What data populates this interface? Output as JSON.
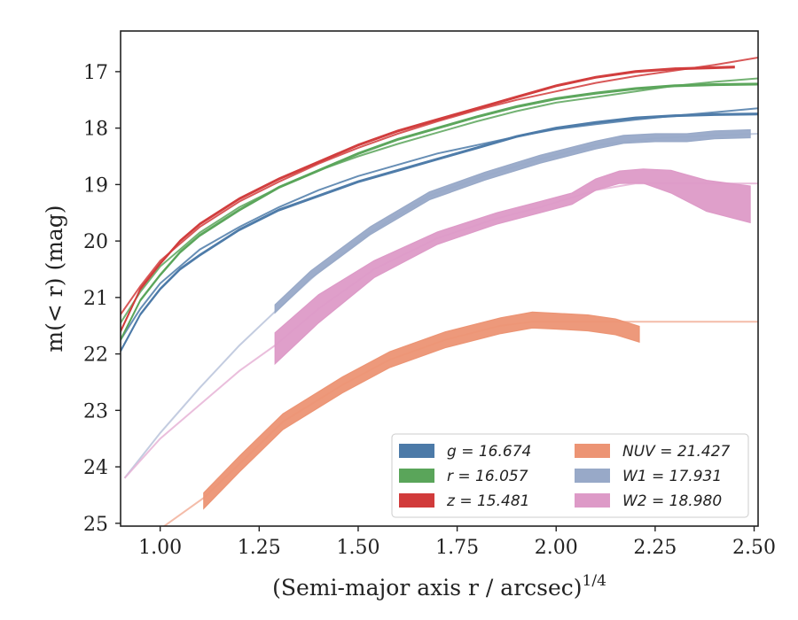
{
  "chart_data": {
    "type": "line",
    "title": "",
    "xlabel": "(Semi-major axis r / arcsec)",
    "xlabel_sup": "1/4",
    "ylabel": "m(< r) (mag)",
    "xlim": [
      0.9,
      2.51
    ],
    "ylim": [
      25.05,
      16.28
    ],
    "y_inverted": true,
    "grid": false,
    "legend_position": "bottom-right",
    "x_ticks": [
      "1.00",
      "1.25",
      "1.50",
      "1.75",
      "2.00",
      "2.25",
      "2.50"
    ],
    "x_tick_values": [
      1.0,
      1.25,
      1.5,
      1.75,
      2.0,
      2.25,
      2.5
    ],
    "y_ticks": [
      "17",
      "18",
      "19",
      "20",
      "21",
      "22",
      "23",
      "24",
      "25"
    ],
    "y_tick_values": [
      17,
      18,
      19,
      20,
      21,
      22,
      23,
      24,
      25
    ],
    "legend": [
      {
        "label": "g = 16.674",
        "color": "#4c7aa8"
      },
      {
        "label": "r = 16.057",
        "color": "#5aa55a"
      },
      {
        "label": "z = 15.481",
        "color": "#d13b3b"
      },
      {
        "label": "NUV = 21.427",
        "color": "#ec9474"
      },
      {
        "label": "W1 = 17.931",
        "color": "#98a9c8"
      },
      {
        "label": "W2 = 18.980",
        "color": "#dd9ac7"
      }
    ],
    "series": [
      {
        "name": "g = 16.674",
        "color": "#4c7aa8",
        "style": "band",
        "band_width": 0.03,
        "x": [
          0.9,
          0.95,
          1.0,
          1.05,
          1.1,
          1.2,
          1.3,
          1.4,
          1.5,
          1.6,
          1.7,
          1.8,
          1.9,
          2.0,
          2.1,
          2.2,
          2.3,
          2.4,
          2.51
        ],
        "y": [
          21.95,
          21.3,
          20.85,
          20.5,
          20.25,
          19.8,
          19.45,
          19.2,
          18.95,
          18.75,
          18.55,
          18.35,
          18.15,
          18.0,
          17.9,
          17.82,
          17.78,
          17.76,
          17.75
        ]
      },
      {
        "name": "r = 16.057",
        "color": "#5aa55a",
        "style": "band",
        "band_width": 0.03,
        "x": [
          0.9,
          0.95,
          1.0,
          1.05,
          1.1,
          1.2,
          1.3,
          1.4,
          1.5,
          1.6,
          1.7,
          1.8,
          1.9,
          2.0,
          2.1,
          2.2,
          2.3,
          2.4,
          2.51
        ],
        "y": [
          21.75,
          21.05,
          20.6,
          20.2,
          19.9,
          19.45,
          19.05,
          18.75,
          18.45,
          18.2,
          18.0,
          17.8,
          17.62,
          17.48,
          17.38,
          17.3,
          17.25,
          17.23,
          17.22
        ]
      },
      {
        "name": "z = 15.481",
        "color": "#d13b3b",
        "style": "band",
        "band_width": 0.03,
        "x": [
          0.9,
          0.95,
          1.0,
          1.05,
          1.1,
          1.2,
          1.3,
          1.4,
          1.5,
          1.6,
          1.7,
          1.8,
          1.9,
          2.0,
          2.1,
          2.2,
          2.3,
          2.4,
          2.45
        ],
        "y": [
          21.6,
          20.85,
          20.4,
          20.0,
          19.7,
          19.25,
          18.9,
          18.6,
          18.3,
          18.05,
          17.85,
          17.65,
          17.45,
          17.25,
          17.1,
          17.0,
          16.95,
          16.93,
          16.92
        ]
      },
      {
        "name": "NUV = 21.427",
        "color": "#ec9474",
        "style": "band",
        "band_width": 0.28,
        "x": [
          1.11,
          1.2,
          1.31,
          1.46,
          1.58,
          1.72,
          1.86,
          1.94,
          2.0,
          2.08,
          2.15,
          2.21
        ],
        "y": [
          24.6,
          23.95,
          23.2,
          22.55,
          22.1,
          21.75,
          21.5,
          21.4,
          21.42,
          21.45,
          21.52,
          21.65
        ]
      },
      {
        "name": "W1 = 17.931",
        "color": "#98a9c8",
        "style": "band",
        "band_width": 0.14,
        "x": [
          1.29,
          1.38,
          1.53,
          1.68,
          1.82,
          1.96,
          2.1,
          2.17,
          2.25,
          2.33,
          2.4,
          2.49
        ],
        "y": [
          21.2,
          20.6,
          19.82,
          19.2,
          18.85,
          18.55,
          18.3,
          18.2,
          18.17,
          18.17,
          18.12,
          18.1
        ]
      },
      {
        "name": "W2 = 18.980",
        "color": "#dd9ac7",
        "style": "band",
        "x": [
          1.29,
          1.4,
          1.54,
          1.7,
          1.85,
          1.96,
          2.04,
          2.1,
          2.16,
          2.22,
          2.29,
          2.38,
          2.49
        ],
        "y": [
          21.9,
          21.2,
          20.5,
          19.95,
          19.6,
          19.4,
          19.25,
          19.0,
          18.87,
          18.85,
          18.95,
          19.2,
          19.35
        ],
        "band": [
          0.55,
          0.5,
          0.3,
          0.22,
          0.2,
          0.2,
          0.2,
          0.2,
          0.22,
          0.25,
          0.4,
          0.55,
          0.65
        ]
      },
      {
        "name": "g fit",
        "color": "#4c7aa8",
        "style": "fit",
        "x": [
          0.9,
          0.95,
          1.0,
          1.1,
          1.2,
          1.3,
          1.4,
          1.5,
          1.6,
          1.7,
          1.8,
          1.9,
          2.0,
          2.1,
          2.2,
          2.3,
          2.4,
          2.51
        ],
        "y": [
          21.75,
          21.2,
          20.75,
          20.15,
          19.75,
          19.4,
          19.1,
          18.85,
          18.65,
          18.45,
          18.3,
          18.15,
          18.02,
          17.93,
          17.85,
          17.78,
          17.72,
          17.65
        ]
      },
      {
        "name": "r fit",
        "color": "#5aa55a",
        "style": "fit",
        "x": [
          0.9,
          0.95,
          1.0,
          1.1,
          1.2,
          1.3,
          1.4,
          1.5,
          1.6,
          1.7,
          1.8,
          1.9,
          2.0,
          2.1,
          2.2,
          2.3,
          2.4,
          2.51
        ],
        "y": [
          21.45,
          20.9,
          20.45,
          19.85,
          19.4,
          19.05,
          18.75,
          18.5,
          18.28,
          18.08,
          17.88,
          17.7,
          17.55,
          17.45,
          17.35,
          17.25,
          17.18,
          17.12
        ]
      },
      {
        "name": "z fit",
        "color": "#d13b3b",
        "style": "fit",
        "x": [
          0.9,
          0.95,
          1.0,
          1.1,
          1.2,
          1.3,
          1.4,
          1.5,
          1.6,
          1.7,
          1.8,
          1.9,
          2.0,
          2.1,
          2.2,
          2.3,
          2.4,
          2.51
        ],
        "y": [
          21.3,
          20.8,
          20.35,
          19.75,
          19.3,
          18.95,
          18.63,
          18.35,
          18.1,
          17.88,
          17.68,
          17.5,
          17.35,
          17.2,
          17.08,
          16.98,
          16.88,
          16.75
        ]
      },
      {
        "name": "NUV fit",
        "color": "#f2b09a",
        "style": "fit",
        "x": [
          1.0,
          1.11,
          1.2,
          1.31,
          1.46,
          1.58,
          1.72,
          1.86,
          1.94,
          2.0,
          2.1,
          2.2,
          2.3,
          2.4,
          2.51
        ],
        "y": [
          25.1,
          24.55,
          23.95,
          23.2,
          22.55,
          22.1,
          21.75,
          21.5,
          21.43,
          21.43,
          21.43,
          21.43,
          21.43,
          21.43,
          21.43
        ]
      },
      {
        "name": "W1 fit",
        "color": "#b8c3da",
        "style": "fit",
        "x": [
          0.91,
          1.0,
          1.1,
          1.2,
          1.29,
          1.4,
          1.53,
          1.68,
          1.82,
          1.96,
          2.1,
          2.25,
          2.4,
          2.51
        ],
        "y": [
          24.2,
          23.4,
          22.6,
          21.85,
          21.25,
          20.55,
          19.85,
          19.2,
          18.85,
          18.55,
          18.3,
          18.18,
          18.13,
          18.1
        ]
      },
      {
        "name": "W2 fit",
        "color": "#e6b3d6",
        "style": "fit",
        "x": [
          0.91,
          1.0,
          1.1,
          1.2,
          1.29,
          1.4,
          1.54,
          1.7,
          1.85,
          1.96,
          2.1,
          2.2,
          2.3,
          2.4,
          2.51
        ],
        "y": [
          24.2,
          23.5,
          22.9,
          22.3,
          21.85,
          21.2,
          20.5,
          19.95,
          19.6,
          19.4,
          19.1,
          18.98,
          18.98,
          18.98,
          18.98
        ]
      }
    ]
  }
}
